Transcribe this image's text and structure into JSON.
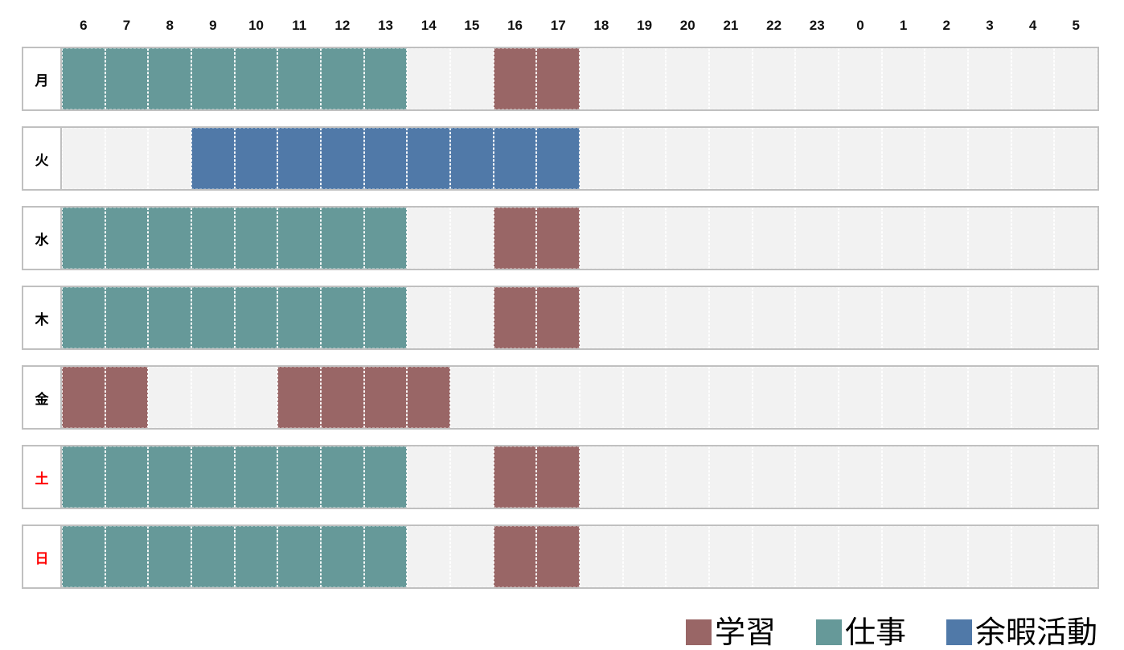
{
  "chart_data": {
    "type": "heatmap",
    "x": [
      "6",
      "7",
      "8",
      "9",
      "10",
      "11",
      "12",
      "13",
      "14",
      "15",
      "16",
      "17",
      "18",
      "19",
      "20",
      "21",
      "22",
      "23",
      "0",
      "1",
      "2",
      "3",
      "4",
      "5"
    ],
    "y": [
      "月",
      "火",
      "水",
      "木",
      "金",
      "土",
      "日"
    ],
    "y_colors": [
      "#000000",
      "#000000",
      "#000000",
      "#000000",
      "#000000",
      "#ff0000",
      "#ff0000"
    ],
    "values": [
      [
        "仕事",
        "仕事",
        "仕事",
        "仕事",
        "仕事",
        "仕事",
        "仕事",
        "仕事",
        null,
        null,
        "学習",
        "学習",
        null,
        null,
        null,
        null,
        null,
        null,
        null,
        null,
        null,
        null,
        null,
        null
      ],
      [
        null,
        null,
        null,
        "余暇活動",
        "余暇活動",
        "余暇活動",
        "余暇活動",
        "余暇活動",
        "余暇活動",
        "余暇活動",
        "余暇活動",
        "余暇活動",
        null,
        null,
        null,
        null,
        null,
        null,
        null,
        null,
        null,
        null,
        null,
        null
      ],
      [
        "仕事",
        "仕事",
        "仕事",
        "仕事",
        "仕事",
        "仕事",
        "仕事",
        "仕事",
        null,
        null,
        "学習",
        "学習",
        null,
        null,
        null,
        null,
        null,
        null,
        null,
        null,
        null,
        null,
        null,
        null
      ],
      [
        "仕事",
        "仕事",
        "仕事",
        "仕事",
        "仕事",
        "仕事",
        "仕事",
        "仕事",
        null,
        null,
        "学習",
        "学習",
        null,
        null,
        null,
        null,
        null,
        null,
        null,
        null,
        null,
        null,
        null,
        null
      ],
      [
        "学習",
        "学習",
        null,
        null,
        null,
        "学習",
        "学習",
        "学習",
        "学習",
        null,
        null,
        null,
        null,
        null,
        null,
        null,
        null,
        null,
        null,
        null,
        null,
        null,
        null,
        null
      ],
      [
        "仕事",
        "仕事",
        "仕事",
        "仕事",
        "仕事",
        "仕事",
        "仕事",
        "仕事",
        null,
        null,
        "学習",
        "学習",
        null,
        null,
        null,
        null,
        null,
        null,
        null,
        null,
        null,
        null,
        null,
        null
      ],
      [
        "仕事",
        "仕事",
        "仕事",
        "仕事",
        "仕事",
        "仕事",
        "仕事",
        "仕事",
        null,
        null,
        "学習",
        "学習",
        null,
        null,
        null,
        null,
        null,
        null,
        null,
        null,
        null,
        null,
        null,
        null
      ]
    ],
    "legend": [
      {
        "name": "学習",
        "color": "#996666"
      },
      {
        "name": "仕事",
        "color": "#669999"
      },
      {
        "name": "余暇活動",
        "color": "#5079a8"
      }
    ],
    "empty_color": "#f2f2f2",
    "legend_position": "bottom-right",
    "grid": true
  }
}
